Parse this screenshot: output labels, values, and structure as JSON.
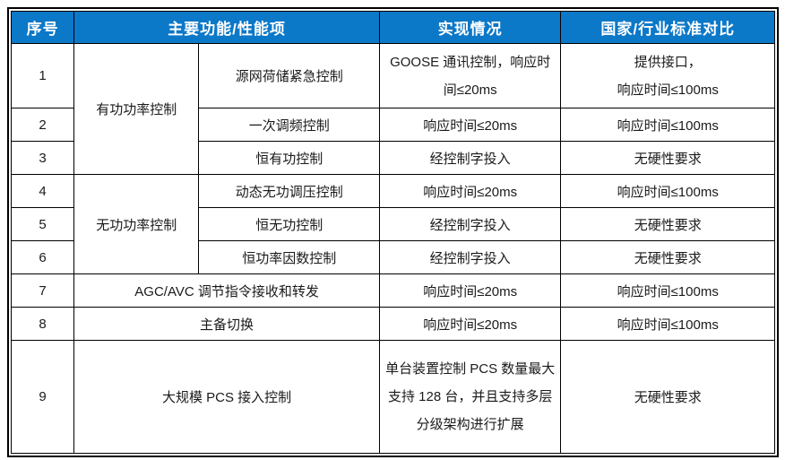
{
  "colors": {
    "header_bg": "#0c78c8",
    "header_text": "#ffffff",
    "border": "#000000",
    "body_text": "#1a1a1a",
    "page_bg": "#ffffff"
  },
  "header": {
    "no": "序号",
    "function": "主要功能/性能项",
    "implementation": "实现情况",
    "standard": "国家/行业标准对比"
  },
  "function_groups": [
    {
      "label": "有功功率控制"
    },
    {
      "label": "无功功率控制"
    }
  ],
  "rows": [
    {
      "no": "1",
      "item": "源网荷储紧急控制",
      "impl": "GOOSE 通讯控制，响应时间≤20ms",
      "std": "提供接口，\n响应时间≤100ms"
    },
    {
      "no": "2",
      "item": "一次调频控制",
      "impl": "响应时间≤20ms",
      "std": "响应时间≤100ms"
    },
    {
      "no": "3",
      "item": "恒有功控制",
      "impl": "经控制字投入",
      "std": "无硬性要求"
    },
    {
      "no": "4",
      "item": "动态无功调压控制",
      "impl": "响应时间≤20ms",
      "std": "响应时间≤100ms"
    },
    {
      "no": "5",
      "item": "恒无功控制",
      "impl": "经控制字投入",
      "std": "无硬性要求"
    },
    {
      "no": "6",
      "item": "恒功率因数控制",
      "impl": "经控制字投入",
      "std": "无硬性要求"
    },
    {
      "no": "7",
      "item": "AGC/AVC 调节指令接收和转发",
      "impl": "响应时间≤20ms",
      "std": "响应时间≤100ms"
    },
    {
      "no": "8",
      "item": "主备切换",
      "impl": "响应时间≤20ms",
      "std": "响应时间≤100ms"
    },
    {
      "no": "9",
      "item": "大规模 PCS 接入控制",
      "impl": "单台装置控制 PCS 数量最大支持 128 台，并且支持多层分级架构进行扩展",
      "std": "无硬性要求"
    }
  ]
}
